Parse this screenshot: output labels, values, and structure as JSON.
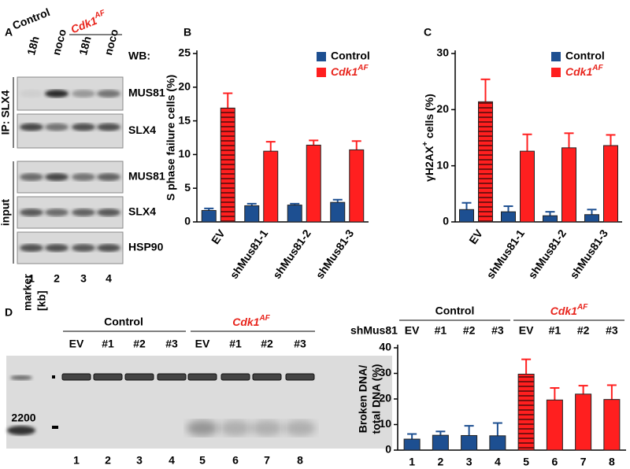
{
  "panel_a": {
    "letter": "A",
    "header": {
      "control": "Control",
      "cdk1": {
        "text": "Cdk1",
        "sup": "AF"
      }
    },
    "lanes": [
      "18h",
      "noco",
      "18h",
      "noco"
    ],
    "wb": "WB:",
    "blots": [
      "MUS81",
      "SLX4",
      "MUS81",
      "SLX4",
      "HSP90"
    ],
    "sections": [
      "IP: SLX4",
      "input"
    ],
    "lane_numbers": [
      "1",
      "2",
      "3",
      "4"
    ]
  },
  "panel_d_gel": {
    "letter": "D",
    "marker": [
      "marker",
      "[kb]"
    ],
    "marker_size": "2200",
    "header": {
      "control": "Control",
      "cdk1": {
        "text": "Cdk1",
        "sup": "AF"
      }
    },
    "lanes": [
      "EV",
      "#1",
      "#2",
      "#3",
      "EV",
      "#1",
      "#2",
      "#3"
    ],
    "lane_numbers": [
      "1",
      "2",
      "3",
      "4",
      "5",
      "6",
      "7",
      "8"
    ]
  },
  "chart_data": [
    {
      "type": "bar",
      "letter": "B",
      "ylabel": "S phase failure cells (%)",
      "categories": [
        "EV",
        "shMus81-1",
        "shMus81-2",
        "shMus81-3"
      ],
      "series": [
        {
          "name": "Control",
          "color": "#1d4f91",
          "values": [
            1.7,
            2.4,
            2.5,
            2.9
          ],
          "errors": [
            0.3,
            0.3,
            0.2,
            0.4
          ]
        },
        {
          "name": "Cdk1",
          "name_sup": "AF",
          "color": "#ff1f1f",
          "values": [
            16.9,
            10.5,
            11.4,
            10.7
          ],
          "errors": [
            2.2,
            1.4,
            0.7,
            1.3
          ],
          "hatch": [
            true,
            false,
            false,
            false
          ]
        }
      ],
      "ylim": [
        0,
        25
      ],
      "yticks": [
        0,
        5,
        10,
        15,
        20,
        25
      ]
    },
    {
      "type": "bar",
      "letter": "C",
      "ylabel": "γH2AX",
      "ylabel_sup": "+",
      "ylabel_rest": " cells (%)",
      "categories": [
        "EV",
        "shMus81-1",
        "shMus81-2",
        "shMus81-3"
      ],
      "series": [
        {
          "name": "Control",
          "color": "#1d4f91",
          "values": [
            2.2,
            1.8,
            1.1,
            1.3
          ],
          "errors": [
            1.2,
            1.0,
            0.7,
            0.9
          ]
        },
        {
          "name": "Cdk1",
          "name_sup": "AF",
          "color": "#ff1f1f",
          "values": [
            21.4,
            12.6,
            13.2,
            13.6
          ],
          "errors": [
            4.0,
            3.0,
            2.6,
            1.9
          ],
          "hatch": [
            true,
            false,
            false,
            false
          ]
        }
      ],
      "ylim": [
        0,
        30
      ],
      "yticks": [
        0,
        10,
        20,
        30
      ]
    },
    {
      "type": "bar",
      "ylabel": [
        "Broken DNA/",
        "total DNA (%)"
      ],
      "row_label": "shMus81",
      "categories": [
        "1",
        "2",
        "3",
        "4",
        "5",
        "6",
        "7",
        "8"
      ],
      "sublabels": [
        "EV",
        "#1",
        "#2",
        "#3",
        "EV",
        "#1",
        "#2",
        "#3"
      ],
      "series": [
        {
          "name": "Control",
          "color": "#1d4f91",
          "values": [
            4.3,
            5.8,
            5.7,
            5.6,
            null,
            null,
            null,
            null
          ],
          "errors": [
            2.0,
            1.5,
            3.8,
            5.0,
            null,
            null,
            null,
            null
          ]
        },
        {
          "name": "Cdk1",
          "name_sup": "AF",
          "color": "#ff1f1f",
          "values": [
            null,
            null,
            null,
            null,
            29.7,
            19.6,
            21.9,
            19.8
          ],
          "errors": [
            null,
            null,
            null,
            null,
            5.8,
            4.7,
            3.3,
            5.6
          ],
          "hatch": [
            false,
            false,
            false,
            false,
            true,
            false,
            false,
            false
          ]
        }
      ],
      "ylim": [
        0,
        40
      ],
      "yticks": [
        0,
        10,
        20,
        30,
        40
      ]
    }
  ]
}
